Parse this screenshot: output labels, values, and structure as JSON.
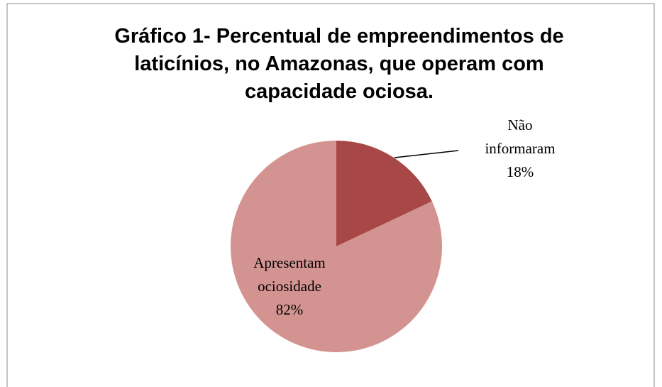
{
  "chart_data": {
    "type": "pie",
    "title": "Gráfico 1- Percentual de empreendimentos de laticínios, no Amazonas, que operam com capacidade ociosa.",
    "categories": [
      "Não informaram",
      "Apresentam ociosidade"
    ],
    "values": [
      18,
      82
    ],
    "value_labels": [
      "18%",
      "82%"
    ],
    "colors": [
      "#a84846",
      "#d39391"
    ]
  }
}
